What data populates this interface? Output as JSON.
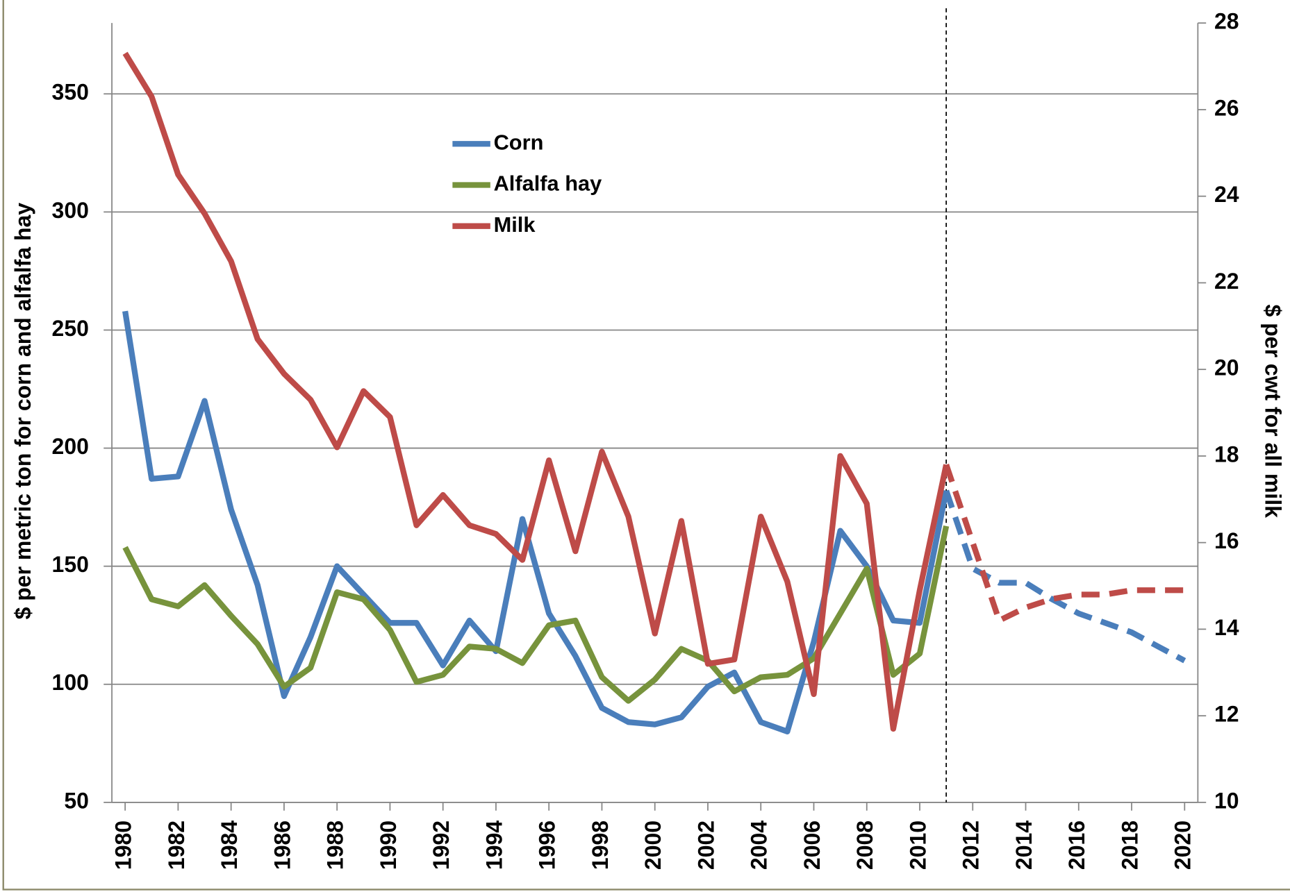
{
  "chart_data": {
    "type": "line",
    "y_label": "$ per metric ton for corn and alfalfa hay",
    "y2_label": "$ per cwt for all milk",
    "x": [
      1980,
      1981,
      1982,
      1983,
      1984,
      1985,
      1986,
      1987,
      1988,
      1989,
      1990,
      1991,
      1992,
      1993,
      1994,
      1995,
      1996,
      1997,
      1998,
      1999,
      2000,
      2001,
      2002,
      2003,
      2004,
      2005,
      2006,
      2007,
      2008,
      2009,
      2010,
      2011,
      2012,
      2013,
      2014,
      2015,
      2016,
      2017,
      2018,
      2019,
      2020
    ],
    "xlim": [
      1979.5,
      2020.5
    ],
    "xticks": [
      1980,
      1982,
      1984,
      1986,
      1988,
      1990,
      1992,
      1994,
      1996,
      1998,
      2000,
      2002,
      2004,
      2006,
      2008,
      2010,
      2012,
      2014,
      2016,
      2018,
      2020
    ],
    "ylim": [
      50,
      380
    ],
    "yticks": [
      50,
      100,
      150,
      200,
      250,
      300,
      350
    ],
    "y2lim": [
      10,
      28
    ],
    "y2ticks": [
      10,
      12,
      14,
      16,
      18,
      20,
      22,
      24,
      26,
      28
    ],
    "grid": true,
    "divider_x": 2011,
    "series": [
      {
        "name": "Corn",
        "color": "#4a7ebb",
        "axis": "y",
        "values": [
          258,
          187,
          188,
          220,
          174,
          142,
          95,
          120,
          150,
          138,
          126,
          126,
          108,
          127,
          114,
          170,
          130,
          112,
          90,
          84,
          83,
          86,
          99,
          105,
          84,
          80,
          118,
          165,
          150,
          127,
          126,
          182,
          null,
          null,
          null,
          null,
          null,
          null,
          null,
          null,
          null
        ],
        "projection": [
          null,
          null,
          null,
          null,
          null,
          null,
          null,
          null,
          null,
          null,
          null,
          null,
          null,
          null,
          null,
          null,
          null,
          null,
          null,
          null,
          null,
          null,
          null,
          null,
          null,
          null,
          null,
          null,
          null,
          null,
          null,
          182,
          149,
          143,
          143,
          136,
          130,
          126,
          122,
          116,
          110
        ]
      },
      {
        "name": "Alfalfa hay",
        "color": "#77933c",
        "axis": "y",
        "values": [
          158,
          136,
          133,
          142,
          129,
          117,
          99,
          107,
          139,
          136,
          123,
          101,
          104,
          116,
          115,
          109,
          125,
          127,
          103,
          93,
          102,
          115,
          110,
          97,
          103,
          104,
          111,
          130,
          149,
          104,
          113,
          167,
          null,
          null,
          null,
          null,
          null,
          null,
          null,
          null,
          null
        ],
        "projection": null
      },
      {
        "name": "Milk",
        "color": "#be4b48",
        "axis": "y2",
        "values": [
          27.3,
          26.3,
          24.5,
          23.6,
          22.5,
          20.7,
          19.9,
          19.3,
          18.2,
          19.5,
          18.9,
          16.4,
          17.1,
          16.4,
          16.2,
          15.6,
          17.9,
          15.8,
          18.1,
          16.6,
          13.9,
          16.5,
          13.2,
          13.3,
          16.6,
          15.1,
          12.5,
          18.0,
          16.9,
          11.7,
          14.9,
          17.8,
          null,
          null,
          null,
          null,
          null,
          null,
          null,
          null,
          null
        ],
        "projection": [
          null,
          null,
          null,
          null,
          null,
          null,
          null,
          null,
          null,
          null,
          null,
          null,
          null,
          null,
          null,
          null,
          null,
          null,
          null,
          null,
          null,
          null,
          null,
          null,
          null,
          null,
          null,
          null,
          null,
          null,
          null,
          17.8,
          16.0,
          14.2,
          14.5,
          14.7,
          14.8,
          14.8,
          14.9,
          14.9,
          14.9
        ]
      }
    ]
  }
}
